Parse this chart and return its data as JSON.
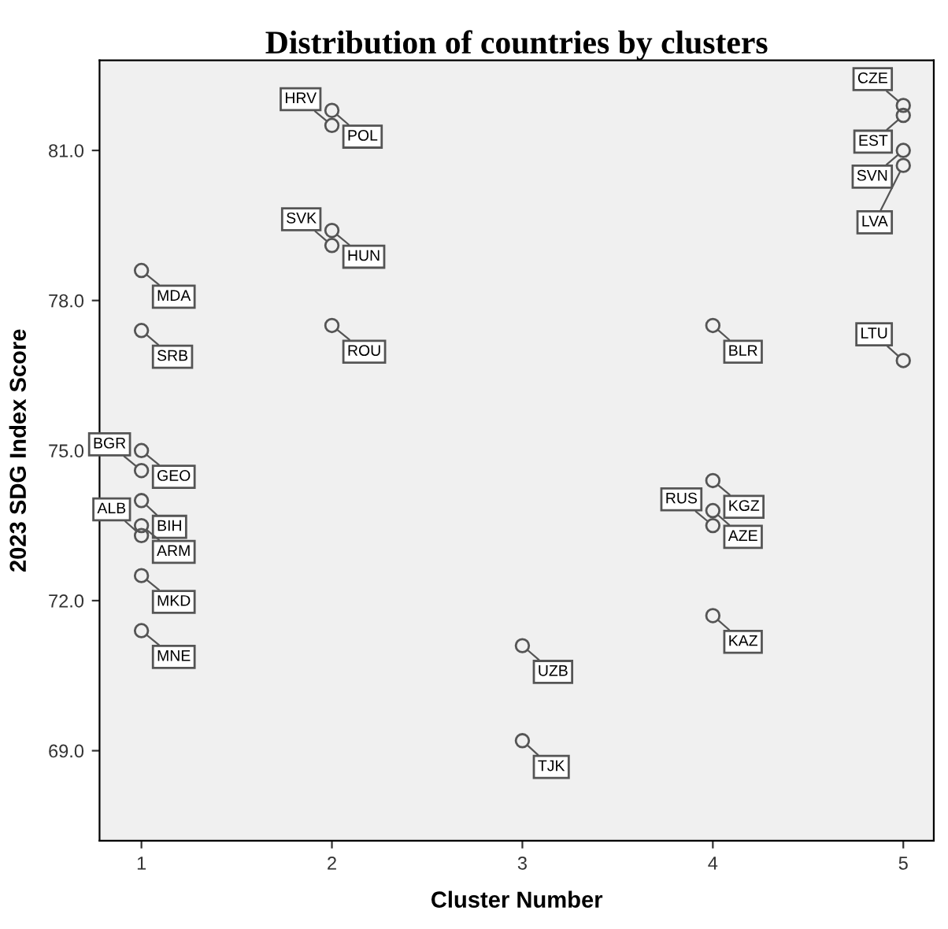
{
  "chart_data": {
    "type": "scatter",
    "title": "Distribution of countries by clusters",
    "xlabel": "Cluster Number",
    "ylabel": "2023 SDG Index Score",
    "xlim": [
      0.78,
      5.16
    ],
    "xticks": [
      1,
      2,
      3,
      4,
      5
    ],
    "ylim": [
      67.2,
      82.8
    ],
    "yticks": [
      {
        "value": 69,
        "label": "69.0"
      },
      {
        "value": 72,
        "label": "72.0"
      },
      {
        "value": 75,
        "label": "75.0"
      },
      {
        "value": 78,
        "label": "78.0"
      },
      {
        "value": 81,
        "label": "81.0"
      }
    ],
    "grid": false,
    "legend": false,
    "marker": "circle",
    "series": [
      {
        "color": "#555555",
        "x": [
          1,
          1,
          1,
          1,
          1,
          1,
          1,
          1,
          1,
          2,
          2,
          2,
          2,
          2,
          3,
          3,
          4,
          4,
          4,
          4,
          4,
          5,
          5,
          5,
          5,
          5
        ],
        "values": [
          78.6,
          77.4,
          75.0,
          74.6,
          74.0,
          73.5,
          73.3,
          72.5,
          71.4,
          81.8,
          81.5,
          79.4,
          79.1,
          77.5,
          71.1,
          69.2,
          77.5,
          74.4,
          73.8,
          73.5,
          71.7,
          81.9,
          81.7,
          81.0,
          80.7,
          76.8
        ]
      }
    ],
    "annotations": [
      {
        "text": "MDA",
        "x": 1,
        "y": 78.6
      },
      {
        "text": "SRB",
        "x": 1,
        "y": 77.4
      },
      {
        "text": "GEO",
        "x": 1,
        "y": 75.0
      },
      {
        "text": "BGR",
        "x": 1,
        "y": 74.6
      },
      {
        "text": "BIH",
        "x": 1,
        "y": 74.0
      },
      {
        "text": "ARM",
        "x": 1,
        "y": 73.5
      },
      {
        "text": "ALB",
        "x": 1,
        "y": 73.3
      },
      {
        "text": "MKD",
        "x": 1,
        "y": 72.5
      },
      {
        "text": "MNE",
        "x": 1,
        "y": 71.4
      },
      {
        "text": "POL",
        "x": 2,
        "y": 81.8
      },
      {
        "text": "HRV",
        "x": 2,
        "y": 81.5
      },
      {
        "text": "HUN",
        "x": 2,
        "y": 79.4
      },
      {
        "text": "SVK",
        "x": 2,
        "y": 79.1
      },
      {
        "text": "ROU",
        "x": 2,
        "y": 77.5
      },
      {
        "text": "UZB",
        "x": 3,
        "y": 71.1
      },
      {
        "text": "TJK",
        "x": 3,
        "y": 69.2
      },
      {
        "text": "BLR",
        "x": 4,
        "y": 77.5
      },
      {
        "text": "KGZ",
        "x": 4,
        "y": 74.4
      },
      {
        "text": "AZE",
        "x": 4,
        "y": 73.8
      },
      {
        "text": "RUS",
        "x": 4,
        "y": 73.5
      },
      {
        "text": "KAZ",
        "x": 4,
        "y": 71.7
      },
      {
        "text": "CZE",
        "x": 5,
        "y": 81.9
      },
      {
        "text": "EST",
        "x": 5,
        "y": 81.7
      },
      {
        "text": "SVN",
        "x": 5,
        "y": 81.0
      },
      {
        "text": "LVA",
        "x": 5,
        "y": 80.7
      },
      {
        "text": "LTU",
        "x": 5,
        "y": 76.8
      }
    ]
  }
}
